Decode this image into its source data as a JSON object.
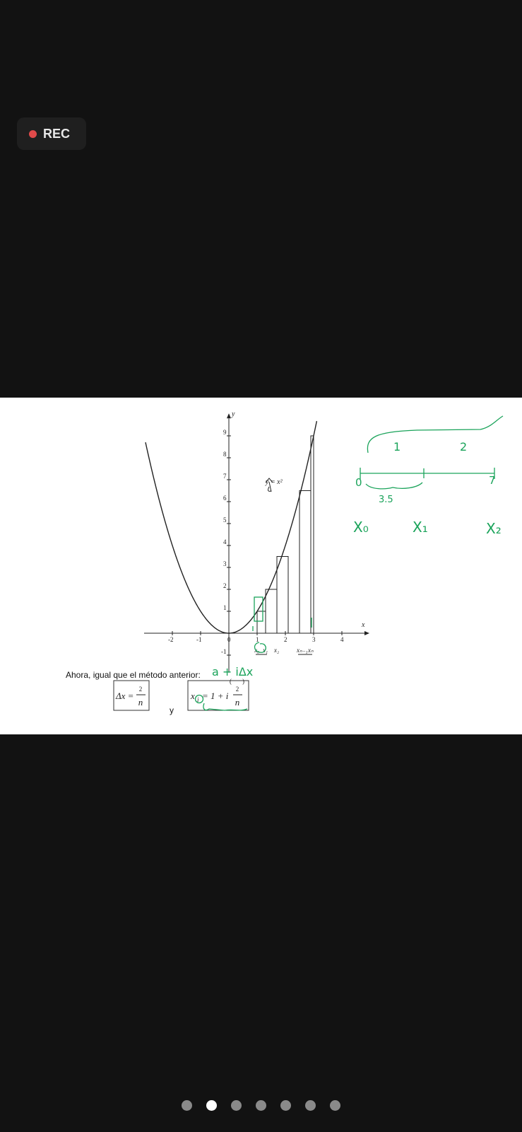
{
  "recording": {
    "label": "REC",
    "indicator_color": "#e04a4a"
  },
  "slide": {
    "intro_text": "Ahora, igual que el método anterior:",
    "formula1": {
      "lhs": "Δx =",
      "numerator": "2",
      "denominator": "n"
    },
    "connector": "y",
    "formula2": {
      "lhs": "x",
      "sub": "i",
      "mid": "= 1 + i",
      "numerator": "2",
      "denominator": "n"
    },
    "curve_label": "y = x²"
  },
  "chart_data": {
    "type": "line",
    "function": "y = x^2",
    "xlabel": "x",
    "ylabel": "y",
    "x_ticks": [
      "-2",
      "-1",
      "0",
      "1",
      "2",
      "3",
      "4"
    ],
    "y_ticks": [
      "-1",
      "1",
      "2",
      "3",
      "4",
      "5",
      "6",
      "7",
      "8",
      "9"
    ],
    "xlim": [
      -3,
      5
    ],
    "ylim": [
      -1,
      10
    ],
    "rectangles": [
      {
        "x0": 1.0,
        "x1": 1.3,
        "height": 1.0
      },
      {
        "x0": 1.3,
        "x1": 1.7,
        "height": 2.0
      },
      {
        "x0": 1.7,
        "x1": 2.1,
        "height": 3.5
      },
      {
        "x0": 2.5,
        "x1": 2.9,
        "height": 6.5
      },
      {
        "x0": 2.9,
        "x1": 3.0,
        "height": 9.0
      }
    ],
    "partition_labels": [
      "x₀",
      "x₁",
      "x₂",
      "xₙ₋₁",
      "xₙ"
    ]
  },
  "annotations": {
    "color": "#1aa35a",
    "handwritten_formula": "a + iΔx",
    "segment_top_labels": [
      "1",
      "2"
    ],
    "number_line_ends": [
      "0",
      "7"
    ],
    "midpoint_label": "3.5",
    "partition_labels": [
      "X₀",
      "X₁",
      "X₂"
    ]
  },
  "pagination": {
    "total": 7,
    "active_index": 1
  }
}
